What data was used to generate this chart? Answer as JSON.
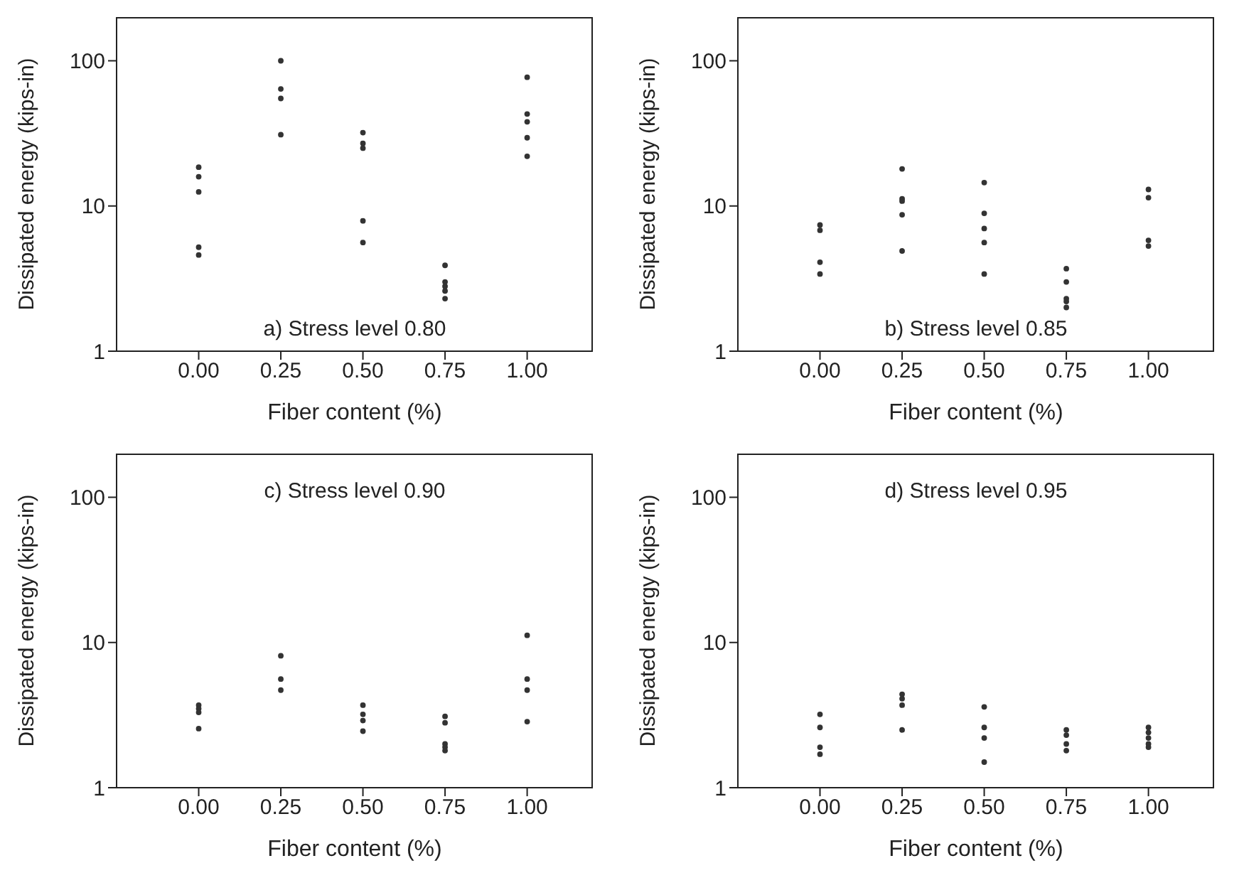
{
  "chart_data": [
    {
      "type": "scatter",
      "xlabel": "Fiber content (%)",
      "ylabel": "Dissipated energy (kips-in)",
      "annotations": [
        "a) Stress level 0.80"
      ],
      "log": "y",
      "marker": "circle",
      "grid": false,
      "xlim": [
        -0.25,
        1.2
      ],
      "xticks": [
        {
          "value": 0,
          "label": "0.00"
        },
        {
          "value": 0.25,
          "label": "0.25"
        },
        {
          "value": 0.5,
          "label": "0.50"
        },
        {
          "value": 0.75,
          "label": "0.75"
        },
        {
          "value": 1,
          "label": "1.00"
        }
      ],
      "ylim": [
        1,
        200
      ],
      "yticks": [
        1,
        10,
        100
      ],
      "series": [
        {
          "color": "#333333",
          "x": [
            0,
            0,
            0,
            0,
            0,
            0.25,
            0.25,
            0.25,
            0.25,
            0.5,
            0.5,
            0.5,
            0.5,
            0.5,
            0.75,
            0.75,
            0.75,
            0.75,
            0.75,
            1,
            1,
            1,
            1,
            1
          ],
          "values": [
            18.5,
            15.9,
            12.5,
            5.2,
            4.6,
            100,
            64,
            55,
            31,
            32,
            27,
            25,
            7.9,
            5.6,
            3.9,
            3.0,
            2.8,
            2.6,
            2.3,
            77,
            43,
            38,
            29.5,
            22
          ]
        }
      ]
    },
    {
      "type": "scatter",
      "xlabel": "Fiber content (%)",
      "ylabel": "Dissipated energy (kips-in)",
      "annotations": [
        "b) Stress level 0.85"
      ],
      "log": "y",
      "marker": "circle",
      "grid": false,
      "xlim": [
        -0.25,
        1.2
      ],
      "xticks": [
        {
          "value": 0,
          "label": "0.00"
        },
        {
          "value": 0.25,
          "label": "0.25"
        },
        {
          "value": 0.5,
          "label": "0.50"
        },
        {
          "value": 0.75,
          "label": "0.75"
        },
        {
          "value": 1,
          "label": "1.00"
        }
      ],
      "ylim": [
        1,
        200
      ],
      "yticks": [
        1,
        10,
        100
      ],
      "series": [
        {
          "color": "#333333",
          "x": [
            0,
            0,
            0,
            0,
            0.25,
            0.25,
            0.25,
            0.25,
            0.25,
            0.5,
            0.5,
            0.5,
            0.5,
            0.5,
            0.75,
            0.75,
            0.75,
            0.75,
            0.75,
            1,
            1,
            1,
            1
          ],
          "values": [
            7.4,
            6.8,
            4.1,
            3.4,
            18,
            11.2,
            10.8,
            8.7,
            4.9,
            14.5,
            8.9,
            7.0,
            5.6,
            3.4,
            3.7,
            3.0,
            2.3,
            2.2,
            2.0,
            13,
            11.4,
            5.8,
            5.3
          ]
        }
      ]
    },
    {
      "type": "scatter",
      "xlabel": "Fiber content (%)",
      "ylabel": "Dissipated energy (kips-in)",
      "annotations": [
        "c) Stress level 0.90"
      ],
      "log": "y",
      "marker": "circle",
      "grid": false,
      "xlim": [
        -0.25,
        1.2
      ],
      "xticks": [
        {
          "value": 0,
          "label": "0.00"
        },
        {
          "value": 0.25,
          "label": "0.25"
        },
        {
          "value": 0.5,
          "label": "0.50"
        },
        {
          "value": 0.75,
          "label": "0.75"
        },
        {
          "value": 1,
          "label": "1.00"
        }
      ],
      "ylim": [
        1,
        200
      ],
      "yticks": [
        1,
        10,
        100
      ],
      "series": [
        {
          "color": "#333333",
          "x": [
            0,
            0,
            0,
            0,
            0.25,
            0.25,
            0.25,
            0.5,
            0.5,
            0.5,
            0.5,
            0.75,
            0.75,
            0.75,
            0.75,
            0.75,
            1,
            1,
            1,
            1
          ],
          "values": [
            3.7,
            3.5,
            3.3,
            2.55,
            8.1,
            5.6,
            4.7,
            3.7,
            3.2,
            2.9,
            2.45,
            3.1,
            2.8,
            2.0,
            1.9,
            1.8,
            11.2,
            5.6,
            4.7,
            2.85
          ]
        }
      ]
    },
    {
      "type": "scatter",
      "xlabel": "Fiber content (%)",
      "ylabel": "Dissipated energy (kips-in)",
      "annotations": [
        "d) Stress level 0.95"
      ],
      "log": "y",
      "marker": "circle",
      "grid": false,
      "xlim": [
        -0.25,
        1.2
      ],
      "xticks": [
        {
          "value": 0,
          "label": "0.00"
        },
        {
          "value": 0.25,
          "label": "0.25"
        },
        {
          "value": 0.5,
          "label": "0.50"
        },
        {
          "value": 0.75,
          "label": "0.75"
        },
        {
          "value": 1,
          "label": "1.00"
        }
      ],
      "ylim": [
        1,
        200
      ],
      "yticks": [
        1,
        10,
        100
      ],
      "series": [
        {
          "color": "#333333",
          "x": [
            0,
            0,
            0,
            0,
            0.25,
            0.25,
            0.25,
            0.25,
            0.5,
            0.5,
            0.5,
            0.5,
            0.75,
            0.75,
            0.75,
            0.75,
            1,
            1,
            1,
            1,
            1
          ],
          "values": [
            3.2,
            2.6,
            1.9,
            1.7,
            4.4,
            4.1,
            3.7,
            2.5,
            3.6,
            2.6,
            2.2,
            1.5,
            2.5,
            2.3,
            2.0,
            1.8,
            2.6,
            2.4,
            2.2,
            2.0,
            1.9
          ]
        }
      ]
    }
  ]
}
